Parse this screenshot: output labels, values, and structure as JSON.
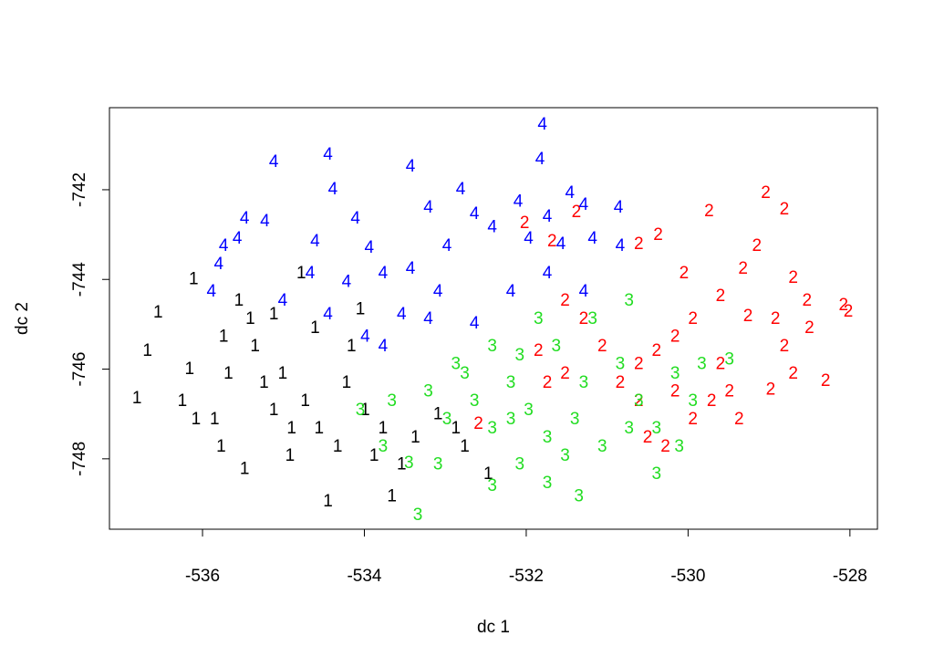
{
  "chart_data": {
    "type": "scatter",
    "xlabel": "dc 1",
    "ylabel": "dc 2",
    "xlim": [
      -537.15,
      -527.66
    ],
    "ylim": [
      -749.57,
      -740.17
    ],
    "xticks": [
      -536,
      -534,
      -532,
      -530,
      -528
    ],
    "yticks": [
      -748,
      -746,
      -744,
      -742
    ],
    "series": [
      {
        "name": "1",
        "color": "#000000",
        "x": [
          -536.81,
          -536.68,
          -536.55,
          -536.11,
          -536.16,
          -536.25,
          -536.08,
          -535.85,
          -535.77,
          -535.48,
          -535.74,
          -535.68,
          -535.55,
          -535.41,
          -535.35,
          -535.24,
          -535.12,
          -535.01,
          -534.9,
          -534.92,
          -534.73,
          -534.56,
          -534.45,
          -534.33,
          -534.22,
          -534.16,
          -533.99,
          -533.88,
          -533.77,
          -533.66,
          -533.54,
          -533.37,
          -533.09,
          -532.87,
          -532.76,
          -532.47,
          -534.61,
          -535.12,
          -534.78,
          -534.05
        ],
        "values": [
          -746.66,
          -745.6,
          -744.75,
          -744.01,
          -746.01,
          -746.72,
          -747.13,
          -747.13,
          -747.74,
          -748.24,
          -745.29,
          -746.11,
          -744.48,
          -744.89,
          -745.5,
          -746.31,
          -746.92,
          -746.11,
          -747.33,
          -747.94,
          -746.72,
          -747.33,
          -748.96,
          -747.74,
          -746.31,
          -745.5,
          -746.92,
          -747.94,
          -747.33,
          -748.85,
          -748.14,
          -747.53,
          -747.02,
          -747.33,
          -747.74,
          -748.35,
          -745.09,
          -744.79,
          -743.87,
          -744.68
        ]
      },
      {
        "name": "2",
        "color": "#ff0000",
        "x": [
          -529.04,
          -528.81,
          -529.74,
          -530.37,
          -530.61,
          -531.38,
          -531.68,
          -532.02,
          -529.15,
          -529.32,
          -528.7,
          -528.53,
          -528.08,
          -528.02,
          -528.3,
          -528.5,
          -528.92,
          -529.26,
          -528.98,
          -529.37,
          -529.6,
          -529.94,
          -530.16,
          -530.39,
          -530.61,
          -530.84,
          -531.06,
          -531.29,
          -531.52,
          -531.85,
          -531.74,
          -531.52,
          -530.61,
          -530.16,
          -529.94,
          -530.28,
          -530.5,
          -529.71,
          -529.49,
          -528.7,
          -528.81,
          -530.05,
          -529.6,
          -532.59
        ],
        "values": [
          -742.08,
          -742.45,
          -742.49,
          -743.02,
          -743.22,
          -742.51,
          -743.16,
          -742.75,
          -743.26,
          -743.77,
          -743.97,
          -744.48,
          -744.58,
          -744.73,
          -746.27,
          -745.09,
          -744.89,
          -744.83,
          -746.47,
          -747.13,
          -745.9,
          -744.89,
          -745.29,
          -745.6,
          -745.9,
          -746.31,
          -745.5,
          -744.89,
          -744.48,
          -745.6,
          -746.31,
          -746.11,
          -746.72,
          -746.51,
          -747.13,
          -747.74,
          -747.53,
          -746.72,
          -746.51,
          -746.11,
          -745.5,
          -743.87,
          -744.38,
          -747.23
        ]
      },
      {
        "name": "3",
        "color": "#22dd22",
        "x": [
          -533.34,
          -532.42,
          -533.45,
          -533.09,
          -533.77,
          -534.05,
          -533.66,
          -533.21,
          -532.87,
          -532.64,
          -532.42,
          -532.19,
          -531.97,
          -531.74,
          -531.52,
          -531.35,
          -531.06,
          -530.73,
          -530.39,
          -530.11,
          -530.61,
          -530.16,
          -529.94,
          -530.73,
          -531.18,
          -531.63,
          -531.85,
          -532.08,
          -532.42,
          -532.76,
          -532.98,
          -531.74,
          -532.08,
          -531.29,
          -530.84,
          -530.39,
          -529.83,
          -529.49,
          -532.19,
          -531.4
        ],
        "values": [
          -749.26,
          -748.61,
          -748.1,
          -748.14,
          -747.74,
          -746.92,
          -746.72,
          -746.51,
          -745.9,
          -746.72,
          -747.33,
          -746.31,
          -746.92,
          -747.53,
          -747.94,
          -748.85,
          -747.74,
          -747.33,
          -748.35,
          -747.74,
          -746.72,
          -746.11,
          -746.72,
          -744.48,
          -744.89,
          -745.5,
          -744.89,
          -745.7,
          -745.5,
          -746.11,
          -747.13,
          -748.55,
          -748.14,
          -746.31,
          -745.9,
          -747.33,
          -745.9,
          -745.8,
          -747.13,
          -747.13
        ]
      },
      {
        "name": "4",
        "color": "#0000ff",
        "x": [
          -535.12,
          -534.45,
          -534.39,
          -533.43,
          -531.8,
          -531.83,
          -535.48,
          -535.23,
          -535.74,
          -535.57,
          -535.89,
          -535.8,
          -534.61,
          -534.11,
          -533.94,
          -533.21,
          -532.81,
          -532.64,
          -532.1,
          -531.74,
          -531.46,
          -531.29,
          -530.86,
          -531.18,
          -531.57,
          -531.97,
          -532.42,
          -532.98,
          -533.43,
          -533.77,
          -534.22,
          -534.67,
          -535.01,
          -534.45,
          -533.99,
          -533.54,
          -533.09,
          -532.64,
          -532.19,
          -531.74,
          -531.29,
          -530.84,
          -533.77,
          -533.21
        ],
        "values": [
          -741.39,
          -741.23,
          -742.0,
          -741.49,
          -740.56,
          -741.33,
          -742.65,
          -742.71,
          -743.26,
          -743.1,
          -744.28,
          -743.67,
          -743.16,
          -742.65,
          -743.3,
          -742.41,
          -742.0,
          -742.55,
          -742.28,
          -742.61,
          -742.08,
          -742.35,
          -742.41,
          -743.1,
          -743.22,
          -743.1,
          -742.85,
          -743.26,
          -743.77,
          -743.87,
          -744.07,
          -743.87,
          -744.48,
          -744.79,
          -745.29,
          -744.79,
          -744.28,
          -744.99,
          -744.28,
          -743.87,
          -744.28,
          -743.26,
          -745.5,
          -744.89
        ]
      }
    ]
  }
}
